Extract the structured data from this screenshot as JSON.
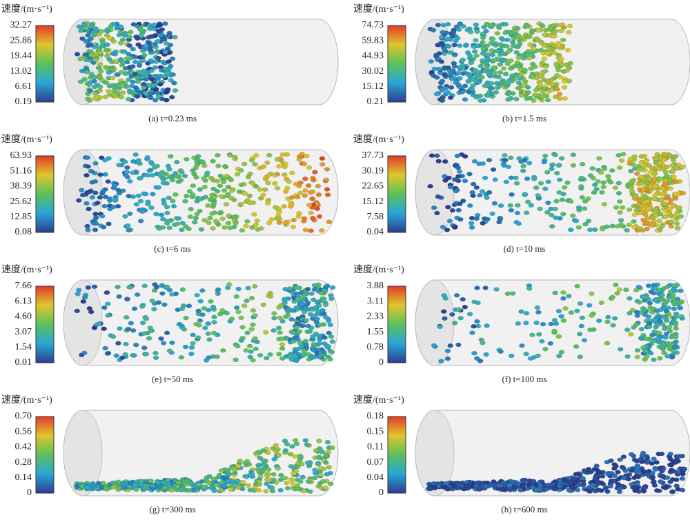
{
  "panels": [
    {
      "unit_label": "速度/(m·s⁻¹)",
      "ticks": [
        "32.27",
        "25.86",
        "19.44",
        "13.02",
        "6.61",
        "0.19"
      ],
      "caption": "(a) t=0.23 ms"
    },
    {
      "unit_label": "速度/(m·s⁻¹)",
      "ticks": [
        "74.73",
        "59.83",
        "44.93",
        "30.02",
        "15.12",
        "0.21"
      ],
      "caption": "(b) t=1.5 ms"
    },
    {
      "unit_label": "速度/(m·s⁻¹)",
      "ticks": [
        "63.93",
        "51.16",
        "38.39",
        "25.62",
        "12.85",
        "0.08"
      ],
      "caption": "(c) t=6 ms"
    },
    {
      "unit_label": "速度/(m·s⁻¹)",
      "ticks": [
        "37.73",
        "30.19",
        "22.65",
        "15.12",
        "7.58",
        "0.04"
      ],
      "caption": "(d) t=10 ms"
    },
    {
      "unit_label": "速度/(m·s⁻¹)",
      "ticks": [
        "7.66",
        "6.13",
        "4.60",
        "3.07",
        "1.54",
        "0.01"
      ],
      "caption": "(e) t=50 ms"
    },
    {
      "unit_label": "速度/(m·s⁻¹)",
      "ticks": [
        "3.88",
        "3.11",
        "2.33",
        "1.55",
        "0.78",
        "0"
      ],
      "caption": "(f) t=100 ms"
    },
    {
      "unit_label": "速度/(m·s⁻¹)",
      "ticks": [
        "0.70",
        "0.56",
        "0.42",
        "0.28",
        "0.14",
        "0"
      ],
      "caption": "(g) t=300 ms"
    },
    {
      "unit_label": "速度/(m·s⁻¹)",
      "ticks": [
        "0.18",
        "0.15",
        "0.11",
        "0.07",
        "0.04",
        "0"
      ],
      "caption": "(h) t=600 ms"
    }
  ]
}
